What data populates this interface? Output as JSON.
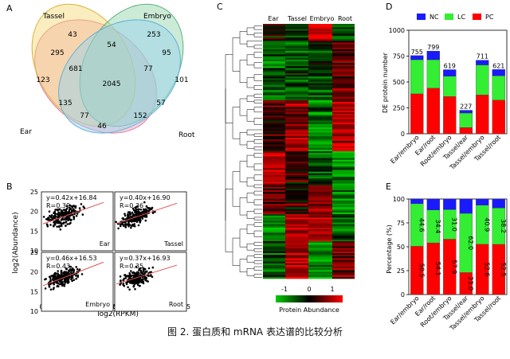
{
  "panel_letters": [
    "A",
    "B",
    "C",
    "D",
    "E"
  ],
  "venn": {
    "sets": [
      {
        "name": "Tassel",
        "color": "#e8a0b6"
      },
      {
        "name": "Embryo",
        "color": "#9fd6a8"
      },
      {
        "name": "Ear",
        "color": "#f3b9c8"
      },
      {
        "name": "Root",
        "color": "#9fd3ec"
      }
    ],
    "regions": [
      "43",
      "253",
      "295",
      "54",
      "95",
      "123",
      "681",
      "77",
      "101",
      "2045",
      "135",
      "57",
      "77",
      "152",
      "46"
    ]
  },
  "scatter": {
    "ylabel": "log2(Abundance)",
    "xlabel": "log2(RPKM)",
    "y_ticks": [
      "25",
      "20",
      "15",
      "10"
    ],
    "x_ticks": [
      "0",
      "5",
      "10",
      "15"
    ],
    "panels": [
      {
        "label": "Ear",
        "equation": "y=0.42x+16.84",
        "r": "R=0.39",
        "slope": 0.42,
        "intercept": 16.84
      },
      {
        "label": "Tassel",
        "equation": "y=0.40x+16.90",
        "r": "R=0.36",
        "slope": 0.4,
        "intercept": 16.9
      },
      {
        "label": "Embryo",
        "equation": "y=0.46x+16.53",
        "r": "R=0.43",
        "slope": 0.46,
        "intercept": 16.53
      },
      {
        "label": "Root",
        "equation": "y=0.37x+16.93",
        "r": "R=0.35",
        "slope": 0.37,
        "intercept": 16.93
      }
    ]
  },
  "heatmap": {
    "columns": [
      "Ear",
      "Tassel",
      "Embryo",
      "Root"
    ],
    "legend_ticks": [
      "-1",
      "0",
      "1"
    ],
    "legend_title": "Protein Abundance",
    "colors": {
      "low": "#00cc00",
      "mid": "#000000",
      "high": "#ff0000"
    }
  },
  "chart_data": [
    {
      "type": "bar",
      "stacked": true,
      "categories": [
        "Ear/embryo",
        "Ear/root",
        "Root/embryo",
        "Tassel/ear",
        "Tassel/embryo",
        "Tassel/root"
      ],
      "ylabel": "DE  protein number",
      "ylim": [
        0,
        1000
      ],
      "yticks": [
        "0",
        "250",
        "500",
        "750",
        "1000"
      ],
      "totals": [
        755,
        799,
        619,
        227,
        711,
        621
      ],
      "legend": [
        "NC",
        "LC",
        "PC"
      ],
      "series": [
        {
          "name": "PC",
          "color": "#ff0000",
          "values": [
            385,
            440,
            360,
            60,
            375,
            325
          ]
        },
        {
          "name": "LC",
          "color": "#33ee33",
          "values": [
            330,
            275,
            195,
            140,
            290,
            235
          ]
        },
        {
          "name": "NC",
          "color": "#1a1aff",
          "values": [
            40,
            84,
            64,
            27,
            46,
            61
          ]
        }
      ]
    },
    {
      "type": "bar",
      "stacked": true,
      "categories": [
        "Ear/embryo",
        "Ear/root",
        "Root/embryo",
        "Tassel/ear",
        "Tassel/embryo",
        "Tassel/root"
      ],
      "ylabel": "Percentage (%)",
      "ylim": [
        0,
        100
      ],
      "yticks": [
        "0",
        "25",
        "50",
        "75",
        "100"
      ],
      "series": [
        {
          "name": "PC",
          "color": "#ff0000",
          "values": [
            50.5,
            54.1,
            57.9,
            23.0,
            52.6,
            52.5
          ]
        },
        {
          "name": "LC",
          "color": "#33ee33",
          "values": [
            44.6,
            34.4,
            31.0,
            62.0,
            40.9,
            38.2
          ]
        },
        {
          "name": "NC",
          "color": "#1a1aff",
          "values": [
            4.9,
            11.5,
            11.1,
            15.0,
            6.5,
            9.3
          ]
        }
      ],
      "labels_pc": [
        "50.5",
        "54.1",
        "57.9",
        "23.0",
        "52.6",
        "52.5"
      ],
      "labels_lc": [
        "44.6",
        "34.4",
        "31.0",
        "62.0",
        "40.9",
        "38.2"
      ]
    }
  ],
  "caption": "图 2. 蛋白质和 mRNA 表达谱的比较分析"
}
